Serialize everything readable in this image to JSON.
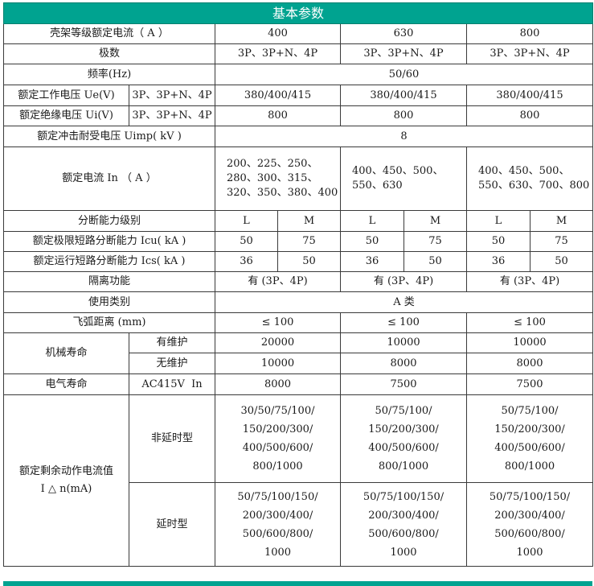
{
  "title": "基本参数",
  "frame_current": {
    "label": "壳架等级额定电流（ A ）",
    "values": [
      "400",
      "630",
      "800"
    ]
  },
  "poles": {
    "label": "极数",
    "values": [
      "3P、3P+N、4P",
      "3P、3P+N、4P",
      "3P、3P+N、4P"
    ]
  },
  "frequency": {
    "label": "频率(Hz)",
    "value": "50/60"
  },
  "ue": {
    "label": "额定工作电压 Ue(V)",
    "sub": "3P、3P+N、4P",
    "values": [
      "380/400/415",
      "380/400/415",
      "380/400/415"
    ]
  },
  "ui": {
    "label": "额定绝缘电压 Ui(V)",
    "sub": "3P、3P+N、4P",
    "values": [
      "800",
      "800",
      "800"
    ]
  },
  "uimp": {
    "label": "额定冲击耐受电压 Uimp( kV )",
    "value": "8"
  },
  "in": {
    "label": "额定电流 In （ A ）",
    "values": [
      "200、225、250、280、300、315、320、350、380、400",
      "400、450、500、550、630",
      "400、450、500、550、630、700、800"
    ]
  },
  "breaking_class": {
    "label": "分断能力级别",
    "values": [
      "L",
      "M",
      "L",
      "M",
      "L",
      "M"
    ]
  },
  "icu": {
    "label": "额定极限短路分断能力 Icu( kA )",
    "values": [
      "50",
      "75",
      "50",
      "75",
      "50",
      "75"
    ]
  },
  "ics": {
    "label": "额定运行短路分断能力 Ics( kA )",
    "values": [
      "36",
      "50",
      "36",
      "50",
      "36",
      "50"
    ]
  },
  "isolation": {
    "label": "隔离功能",
    "values": [
      "有 (3P、4P)",
      "有 (3P、4P)",
      "有 (3P、4P)"
    ]
  },
  "category": {
    "label": "使用类别",
    "value": "A 类"
  },
  "arc": {
    "label": "飞弧距离 (mm)",
    "values": [
      "≤ 100",
      "≤ 100",
      "≤ 100"
    ]
  },
  "mech_life": {
    "label": "机械寿命",
    "with_maint": {
      "label": "有维护",
      "values": [
        "20000",
        "10000",
        "10000"
      ]
    },
    "without_maint": {
      "label": "无维护",
      "values": [
        "10000",
        "8000",
        "8000"
      ]
    }
  },
  "elec_life": {
    "label": "电气寿命",
    "sub": "AC415V  In",
    "values": [
      "8000",
      "7500",
      "7500"
    ]
  },
  "residual": {
    "label": "额定剩余动作电流值",
    "label2": "I △ n(mA)",
    "non_delay": {
      "label": "非延时型",
      "values": [
        [
          "30/50/75/100/",
          "150/200/300/",
          "400/500/600/",
          "800/1000"
        ],
        [
          "50/75/100/",
          "150/200/300/",
          "400/500/600/",
          "800/1000"
        ],
        [
          "50/75/100/",
          "150/200/300/",
          "400/500/600/",
          "800/1000"
        ]
      ]
    },
    "delay": {
      "label": "延时型",
      "values": [
        [
          "50/75/100/150/",
          "200/300/400/",
          "500/600/800/",
          "1000"
        ],
        [
          "50/75/100/150/",
          "200/300/400/",
          "500/600/800/",
          "1000"
        ],
        [
          "50/75/100/150/",
          "200/300/400/",
          "500/600/800/",
          "1000"
        ]
      ]
    }
  },
  "colors": {
    "header": "#00a390",
    "border": "#3a3a3a"
  }
}
